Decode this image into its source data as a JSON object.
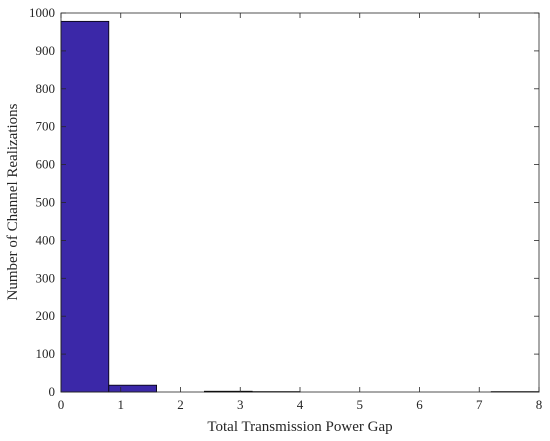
{
  "chart_data": {
    "type": "histogram",
    "x_label": "Total Transmission Power Gap",
    "y_label": "Number of Channel Realizations",
    "bins": [
      0,
      0.8,
      1.6,
      2.4,
      3.2,
      4,
      4.8,
      5.6,
      6.4,
      7.2,
      8
    ],
    "values": [
      978,
      18,
      0,
      2,
      1,
      0,
      0,
      0,
      0,
      1
    ],
    "color": "#3b28a8",
    "xlim": [
      0,
      8
    ],
    "xticks": [
      0,
      1,
      2,
      3,
      4,
      5,
      6,
      7,
      8
    ],
    "ylim": [
      0,
      1000
    ],
    "yticks": [
      0,
      100,
      200,
      300,
      400,
      500,
      600,
      700,
      800,
      900,
      1000
    ]
  }
}
